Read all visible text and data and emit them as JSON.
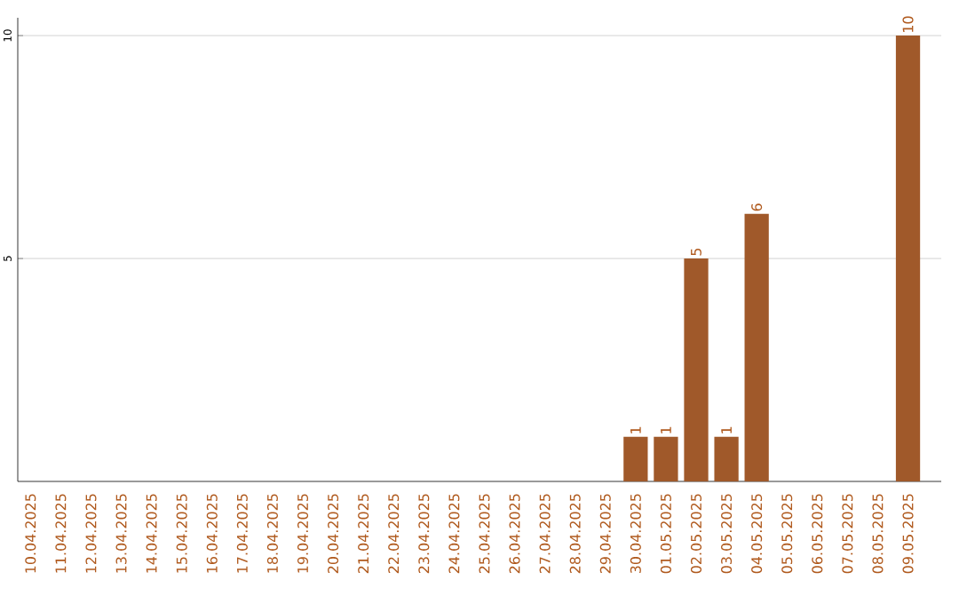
{
  "chart_data": {
    "type": "bar",
    "categories": [
      "10.04.2025",
      "11.04.2025",
      "12.04.2025",
      "13.04.2025",
      "14.04.2025",
      "15.04.2025",
      "16.04.2025",
      "17.04.2025",
      "18.04.2025",
      "19.04.2025",
      "20.04.2025",
      "21.04.2025",
      "22.04.2025",
      "23.04.2025",
      "24.04.2025",
      "25.04.2025",
      "26.04.2025",
      "27.04.2025",
      "28.04.2025",
      "29.04.2025",
      "30.04.2025",
      "01.05.2025",
      "02.05.2025",
      "03.05.2025",
      "04.05.2025",
      "05.05.2025",
      "06.05.2025",
      "07.05.2025",
      "08.05.2025",
      "09.05.2025"
    ],
    "values": [
      0,
      0,
      0,
      0,
      0,
      0,
      0,
      0,
      0,
      0,
      0,
      0,
      0,
      0,
      0,
      0,
      0,
      0,
      0,
      0,
      1,
      1,
      5,
      1,
      6,
      0,
      0,
      0,
      0,
      10
    ],
    "value_labels": [
      null,
      null,
      null,
      null,
      null,
      null,
      null,
      null,
      null,
      null,
      null,
      null,
      null,
      null,
      null,
      null,
      null,
      null,
      null,
      null,
      "1",
      "1",
      "5",
      "1",
      "6",
      null,
      null,
      null,
      null,
      "10"
    ],
    "color": "#a0592a",
    "ylim": [
      0,
      10.4
    ],
    "yticks": [
      5,
      10
    ],
    "grid": "y"
  }
}
